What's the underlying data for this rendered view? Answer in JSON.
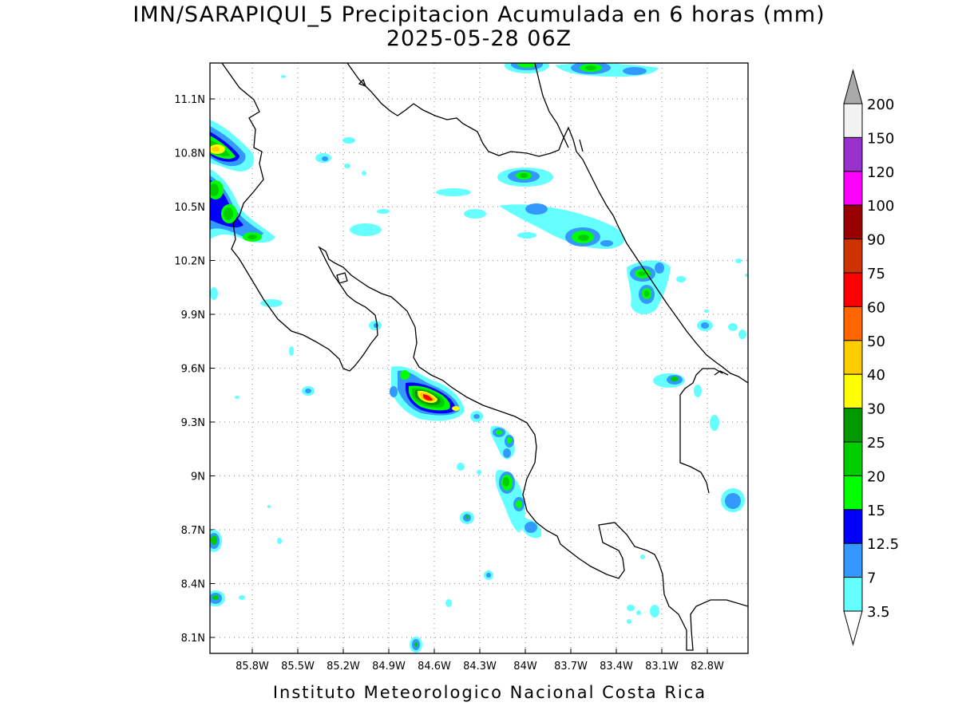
{
  "title": {
    "line1": "IMN/SARAPIQUI_5 Precipitacion Acumulada en 6 horas (mm)",
    "line2": "2025-05-28 06Z"
  },
  "credit": "Instituto Meteorologico Nacional Costa Rica",
  "axes": {
    "lon_labels": [
      "85.8W",
      "85.5W",
      "85.2W",
      "84.9W",
      "84.6W",
      "84.3W",
      "84W",
      "83.7W",
      "83.4W",
      "83.1W",
      "82.8W"
    ],
    "lat_labels": [
      "11.1N",
      "10.8N",
      "10.5N",
      "10.2N",
      "9.9N",
      "9.6N",
      "9.3N",
      "9N",
      "8.7N",
      "8.4N",
      "8.1N"
    ],
    "grid": "dotted"
  },
  "colorbar": {
    "labels": [
      "200",
      "150",
      "120",
      "100",
      "90",
      "75",
      "60",
      "50",
      "40",
      "30",
      "25",
      "20",
      "15",
      "12.5",
      "7",
      "3.5"
    ],
    "colors": [
      "#f2f2f2",
      "#9932cc",
      "#ff00ff",
      "#990000",
      "#cc3300",
      "#ff0000",
      "#ff6600",
      "#ffcc00",
      "#ffff00",
      "#009900",
      "#00cc00",
      "#00ff00",
      "#0000ff",
      "#3399ff",
      "#66ffff"
    ],
    "top_arrow_color": "#aaaaaa"
  },
  "precip_palette": {
    "c3_5": "#66ffff",
    "c7": "#3399ff",
    "c12_5": "#0000ff",
    "c15": "#00ff00",
    "c20": "#00cc00",
    "c25": "#009900",
    "c30": "#ffff00",
    "c40": "#ffcc00",
    "c60": "#ff0000",
    "c75": "#cc3300"
  }
}
